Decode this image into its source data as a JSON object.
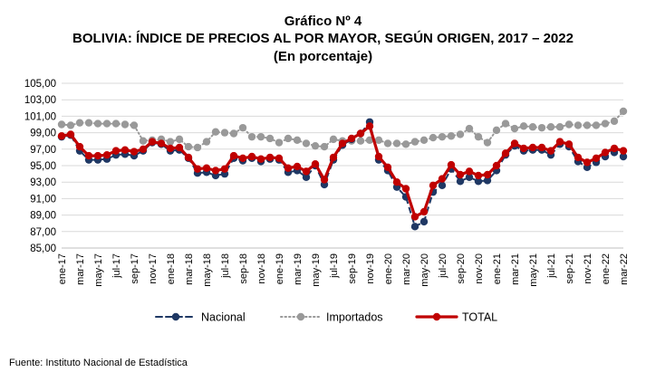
{
  "title": "Gráfico Nº 4",
  "subtitle": "BOLIVIA: ÍNDICE DE PRECIOS AL POR MAYOR, SEGÚN ORIGEN, 2017 – 2022",
  "subtitle2": "(En porcentaje)",
  "source": "Fuente: Instituto Nacional de Estadística",
  "colors": {
    "nacional": "#1f3864",
    "importados": "#999999",
    "total": "#c00000"
  },
  "chart_data": {
    "type": "line",
    "ylim": [
      85,
      105
    ],
    "yticks": [
      "85,00",
      "87,00",
      "89,00",
      "91,00",
      "93,00",
      "95,00",
      "97,00",
      "99,00",
      "101,00",
      "103,00",
      "105,00"
    ],
    "x": [
      "ene-17",
      "feb-17",
      "mar-17",
      "abr-17",
      "may-17",
      "jun-17",
      "jul-17",
      "ago-17",
      "sep-17",
      "oct-17",
      "nov-17",
      "dic-17",
      "ene-18",
      "feb-18",
      "mar-18",
      "abr-18",
      "may-18",
      "jun-18",
      "jul-18",
      "ago-18",
      "sep-18",
      "oct-18",
      "nov-18",
      "dic-18",
      "ene-19",
      "feb-19",
      "mar-19",
      "abr-19",
      "may-19",
      "jun-19",
      "jul-19",
      "ago-19",
      "sep-19",
      "oct-19",
      "nov-19",
      "dic-19",
      "ene-20",
      "feb-20",
      "mar-20",
      "abr-20",
      "may-20",
      "jun-20",
      "jul-20",
      "ago-20",
      "sep-20",
      "oct-20",
      "nov-20",
      "dic-20",
      "ene-21",
      "feb-21",
      "mar-21",
      "abr-21",
      "may-21",
      "jun-21",
      "jul-21",
      "ago-21",
      "sep-21",
      "oct-21",
      "nov-21",
      "dic-21",
      "ene-22",
      "feb-22",
      "mar-22"
    ],
    "xticklabels": [
      "ene-17",
      "mar-17",
      "may-17",
      "jul-17",
      "sep-17",
      "nov-17",
      "ene-18",
      "mar-18",
      "may-18",
      "jul-18",
      "sep-18",
      "nov-18",
      "ene-19",
      "mar-19",
      "may-19",
      "jul-19",
      "sep-19",
      "nov-19",
      "ene-20",
      "mar-20",
      "may-20",
      "jul-20",
      "sep-20",
      "nov-20",
      "ene-21",
      "mar-21",
      "may-21",
      "jul-21",
      "sep-21",
      "nov-21",
      "ene-22",
      "mar-22"
    ],
    "legend_position": "bottom",
    "series": [
      {
        "name": "Nacional",
        "values": [
          98.5,
          98.7,
          96.8,
          95.7,
          95.7,
          95.8,
          96.3,
          96.4,
          96.2,
          96.8,
          97.8,
          97.6,
          96.8,
          96.9,
          95.9,
          94.1,
          94.2,
          93.8,
          94.0,
          95.9,
          95.6,
          95.9,
          95.5,
          95.8,
          95.7,
          94.2,
          94.4,
          93.6,
          95.0,
          92.7,
          95.7,
          97.5,
          98.2,
          98.9,
          100.3,
          95.7,
          94.4,
          92.4,
          91.2,
          87.6,
          88.2,
          91.8,
          92.6,
          94.6,
          93.1,
          93.6,
          93.1,
          93.2,
          94.4,
          96.3,
          97.4,
          96.8,
          96.9,
          96.9,
          96.3,
          97.6,
          97.3,
          95.5,
          94.8,
          95.4,
          96.1,
          96.6,
          96.1
        ]
      },
      {
        "name": "Importados",
        "values": [
          100.0,
          99.9,
          100.2,
          100.2,
          100.1,
          100.1,
          100.1,
          100.0,
          99.9,
          98.0,
          98.1,
          98.2,
          97.9,
          98.2,
          97.3,
          97.2,
          97.9,
          99.1,
          99.0,
          98.9,
          99.6,
          98.5,
          98.5,
          98.3,
          97.8,
          98.3,
          98.1,
          97.7,
          97.4,
          97.3,
          98.2,
          98.0,
          98.0,
          98.0,
          98.1,
          98.1,
          97.7,
          97.7,
          97.6,
          97.9,
          98.1,
          98.4,
          98.5,
          98.6,
          98.8,
          99.5,
          98.5,
          97.8,
          99.3,
          100.1,
          99.5,
          99.8,
          99.7,
          99.6,
          99.7,
          99.7,
          100.0,
          99.9,
          99.9,
          99.9,
          100.1,
          100.4,
          101.6
        ]
      },
      {
        "name": "TOTAL",
        "values": [
          98.6,
          98.8,
          97.3,
          96.2,
          96.2,
          96.3,
          96.8,
          96.9,
          96.7,
          97.0,
          97.9,
          97.7,
          97.1,
          97.2,
          96.0,
          94.6,
          94.7,
          94.4,
          94.6,
          96.2,
          95.9,
          96.1,
          95.8,
          96.0,
          95.9,
          94.7,
          94.9,
          94.3,
          95.2,
          93.3,
          96.0,
          97.7,
          98.3,
          98.9,
          99.8,
          96.1,
          94.8,
          93.0,
          92.2,
          88.8,
          89.4,
          92.6,
          93.4,
          95.1,
          93.9,
          94.3,
          93.8,
          93.9,
          95.0,
          96.5,
          97.7,
          97.1,
          97.2,
          97.2,
          96.8,
          97.9,
          97.6,
          96.0,
          95.4,
          95.9,
          96.6,
          97.1,
          96.8
        ]
      }
    ]
  }
}
